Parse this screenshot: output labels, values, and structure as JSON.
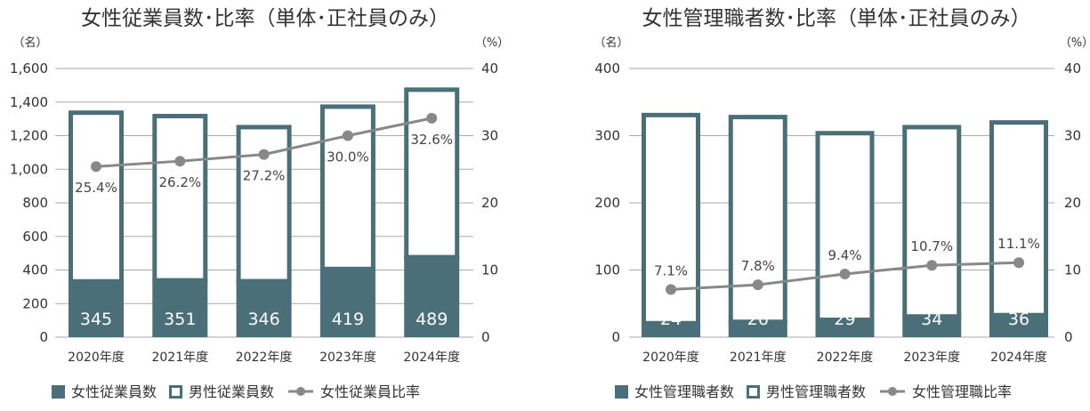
{
  "colors": {
    "bar": "#4a6f78",
    "line": "#888888",
    "grid": "#aaaaaa",
    "text": "#333333"
  },
  "chart_data": [
    {
      "type": "bar",
      "title": "女性従業員数･比率（単体･正社員のみ）",
      "left_unit": "（名）",
      "right_unit": "（%）",
      "categories": [
        "2020年度",
        "2021年度",
        "2022年度",
        "2023年度",
        "2024年度"
      ],
      "ylim": [
        0,
        1600
      ],
      "yticks": [
        "0",
        "200",
        "400",
        "600",
        "800",
        "1,000",
        "1,200",
        "1,400",
        "1,600"
      ],
      "y2lim": [
        0,
        40
      ],
      "y2ticks": [
        "0",
        "10",
        "20",
        "30",
        "40"
      ],
      "series": [
        {
          "name": "女性従業員数",
          "values": [
            345,
            351,
            346,
            419,
            489
          ]
        },
        {
          "name": "男性従業員数",
          "values": [
            1005,
            979,
            918,
            967,
            998
          ]
        },
        {
          "name": "女性従業員比率",
          "values": [
            25.4,
            26.2,
            27.2,
            30.0,
            32.6
          ]
        }
      ],
      "bar_labels": [
        "345",
        "351",
        "346",
        "419",
        "489"
      ],
      "pct_labels": [
        "25.4%",
        "26.2%",
        "27.2%",
        "30.0%",
        "32.6%"
      ],
      "legend": [
        "女性従業員数",
        "男性従業員数",
        "女性従業員比率"
      ]
    },
    {
      "type": "bar",
      "title": "女性管理職者数･比率（単体･正社員のみ）",
      "left_unit": "（名）",
      "right_unit": "（%）",
      "categories": [
        "2020年度",
        "2021年度",
        "2022年度",
        "2023年度",
        "2024年度"
      ],
      "ylim": [
        0,
        400
      ],
      "yticks": [
        "0",
        "100",
        "200",
        "300",
        "400"
      ],
      "y2lim": [
        0,
        40
      ],
      "y2ticks": [
        "0",
        "10",
        "20",
        "30",
        "40"
      ],
      "series": [
        {
          "name": "女性管理職者数",
          "values": [
            24,
            26,
            29,
            34,
            36
          ]
        },
        {
          "name": "男性管理職者数",
          "values": [
            310,
            305,
            278,
            282,
            287
          ]
        },
        {
          "name": "女性管理職比率",
          "values": [
            7.1,
            7.8,
            9.4,
            10.7,
            11.1
          ]
        }
      ],
      "bar_labels": [
        "24",
        "26",
        "29",
        "34",
        "36"
      ],
      "pct_labels": [
        "7.1%",
        "7.8%",
        "9.4%",
        "10.7%",
        "11.1%"
      ],
      "legend": [
        "女性管理職者数",
        "男性管理職者数",
        "女性管理職比率"
      ]
    }
  ]
}
